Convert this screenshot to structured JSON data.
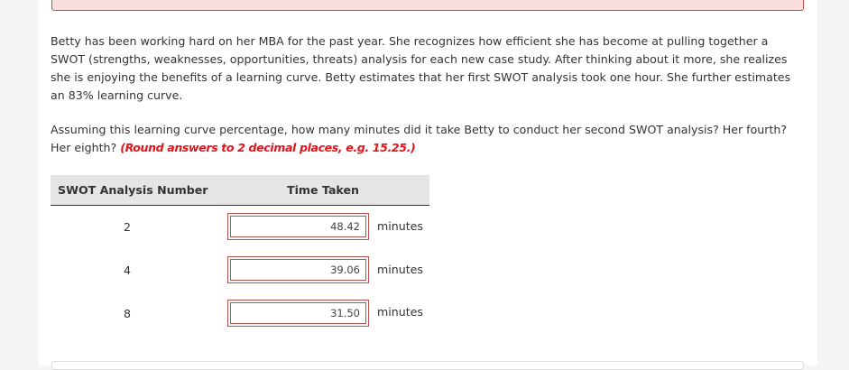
{
  "question": {
    "paragraph1": "Betty has been working hard on her MBA for the past year. She recognizes how efficient she has become at pulling together a SWOT (strengths, weaknesses, opportunities, threats) analysis for each new case study. After thinking about it more, she realizes she is enjoying the benefits of a learning curve. Betty estimates that her first SWOT analysis took one hour. She further estimates an 83% learning curve.",
    "paragraph2": "Assuming this learning curve percentage, how many minutes did it take Betty to conduct her second SWOT analysis? Her fourth? Her eighth?",
    "hint": "(Round answers to 2 decimal places, e.g. 15.25.)"
  },
  "table": {
    "headers": {
      "swot_number": "SWOT Analysis Number",
      "time_taken": "Time Taken"
    },
    "rows": [
      {
        "number": "2",
        "value": "48.42",
        "unit": "minutes"
      },
      {
        "number": "4",
        "value": "39.06",
        "unit": "minutes"
      },
      {
        "number": "8",
        "value": "31.50",
        "unit": "minutes"
      }
    ]
  },
  "colors": {
    "error_border": "#c0504d",
    "hint_red": "#e0151b",
    "header_bg": "#e5e5e5"
  }
}
